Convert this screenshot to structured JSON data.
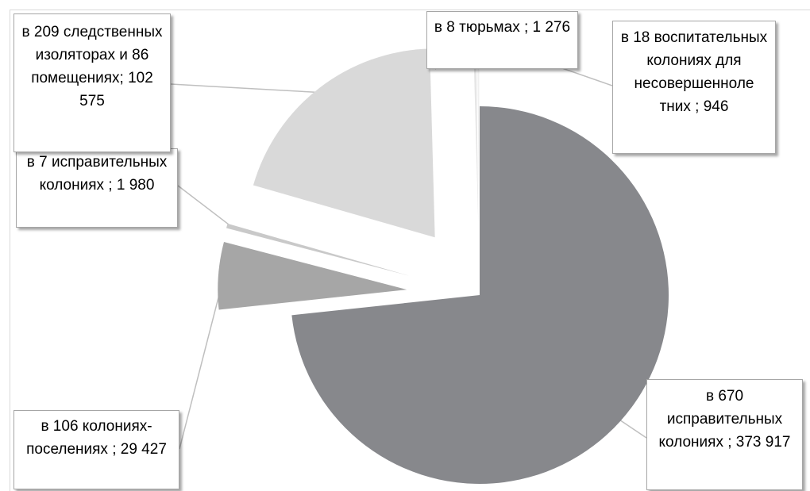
{
  "chart_data": {
    "type": "pie",
    "slices": [
      {
        "value": 373917,
        "label": "в 670 исправительных колониях ; 373 917",
        "color": "#87888c"
      },
      {
        "value": 29427,
        "label": "в 106 колониях-поселениях ; 29 427",
        "color": "#a6a6a6"
      },
      {
        "value": 1980,
        "label": "в 7 исправительных колониях ; 1 980",
        "color": "#c9c9c9"
      },
      {
        "value": 102575,
        "label": "в 209 следственных изоляторах и 86 помещениях; 102 575",
        "color": "#d9d9d9"
      },
      {
        "value": 1276,
        "label": "в 8 тюрьмах ; 1 276",
        "color": "#e6e6e6"
      },
      {
        "value": 946,
        "label": "в 18 воспитательных колониях для несовершенноле тних ; 946",
        "color": "#f0f0f0"
      }
    ],
    "legend": "none",
    "data_labels": "callouts"
  }
}
